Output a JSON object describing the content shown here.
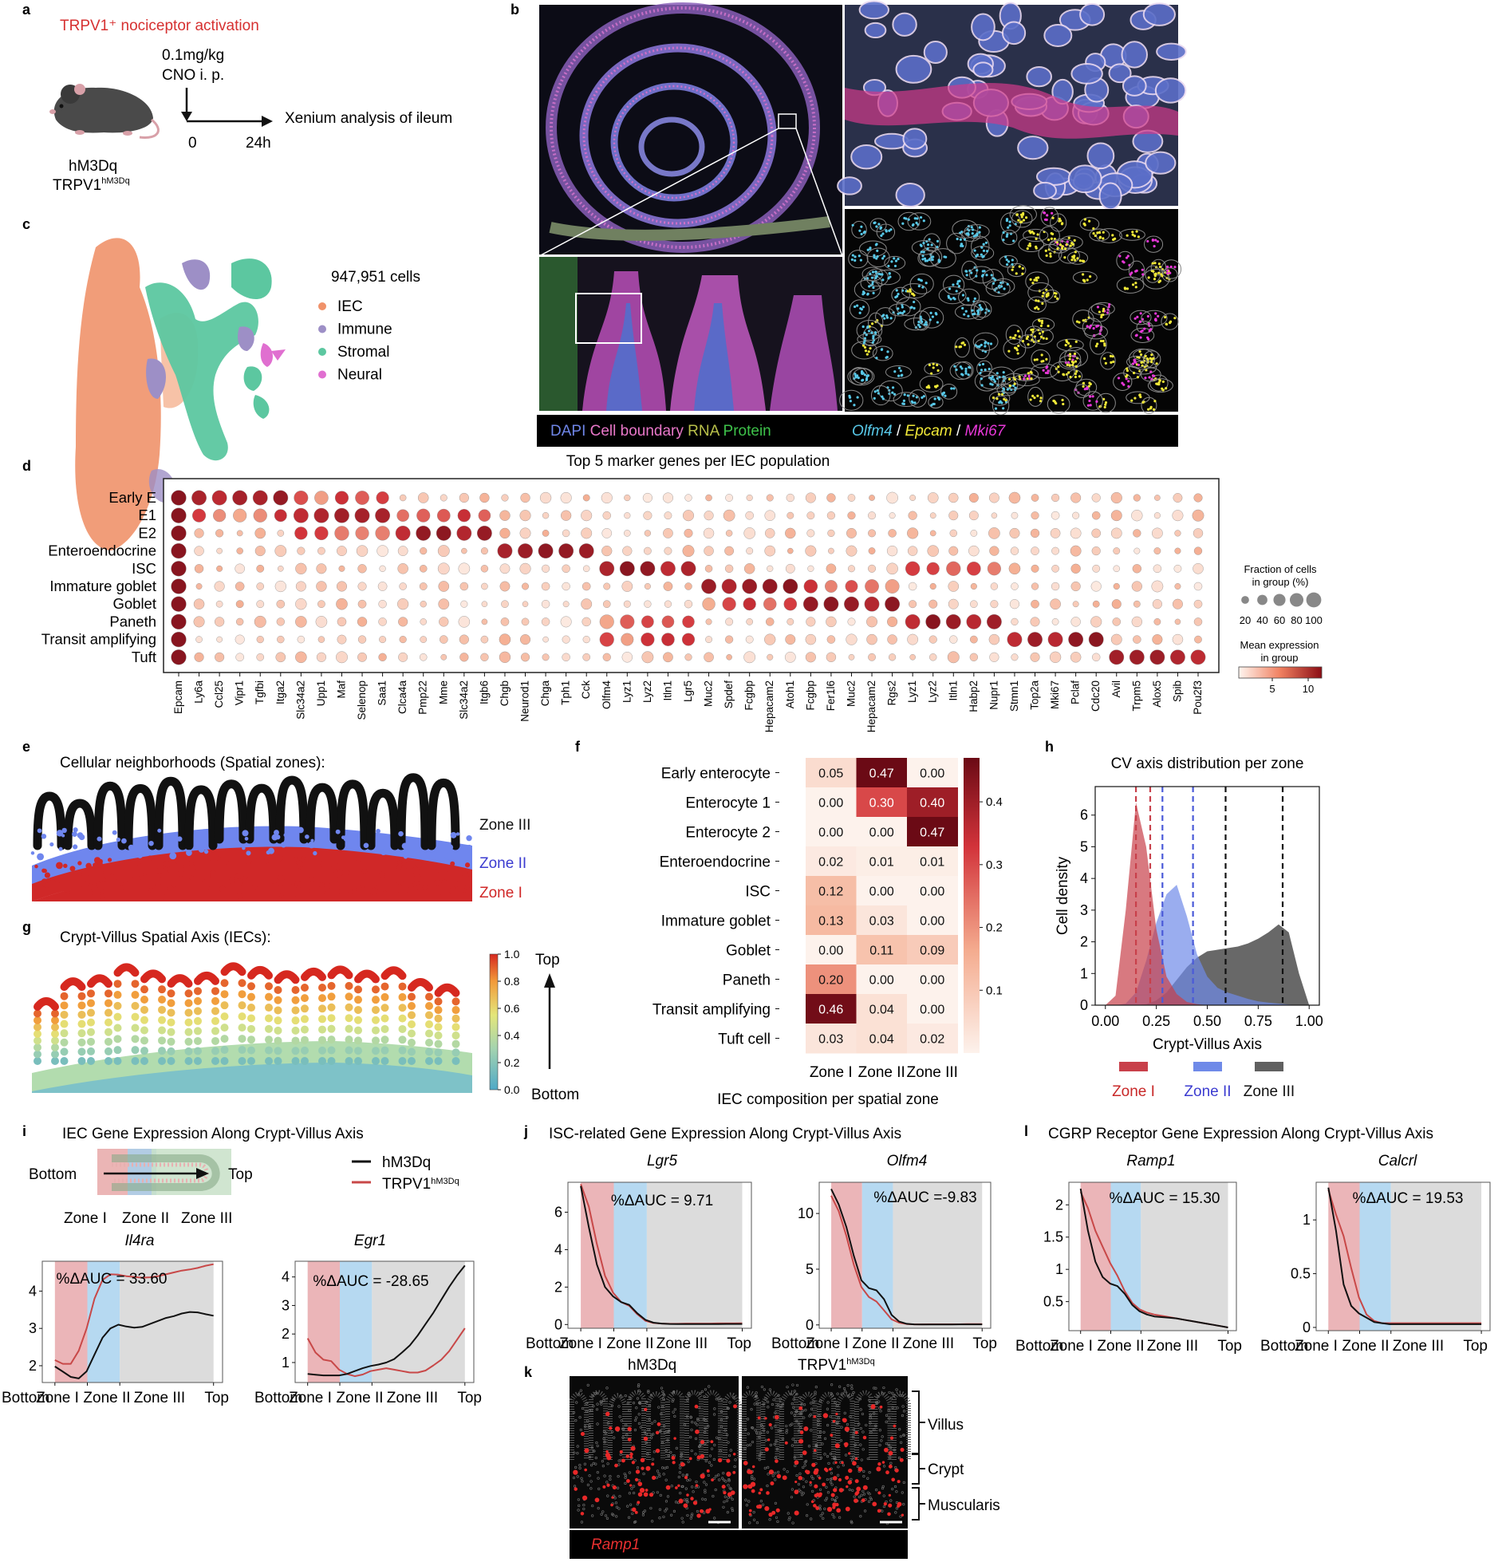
{
  "panel_a": {
    "letter": "a",
    "title": "TRPV1⁺ nociceptor activation",
    "dose_line1": "0.1mg/kg",
    "dose_line2": "CNO i. p.",
    "t0": "0",
    "t24": "24h",
    "analysis": "Xenium analysis of ileum",
    "mouse_line1": "hM3Dq",
    "mouse_line2_main": "TRPV1",
    "mouse_line2_sup": "hM3Dq"
  },
  "panel_b": {
    "letter": "b",
    "legend_left": [
      "DAPI",
      " Cell boundary",
      " RNA",
      " Protein"
    ],
    "legend_left_colors": [
      "#6f86e8",
      "#e877c8",
      "#b8c04a",
      "#3ec24a"
    ],
    "legend_right": [
      "Olfm4",
      " / ",
      "Epcam",
      " / ",
      "Mki67"
    ],
    "legend_right_colors": [
      "#58c8e8",
      "#ffffff",
      "#f0e838",
      "#ffffff",
      "#e838d8"
    ]
  },
  "panel_c": {
    "letter": "c",
    "count": "947,951 cells",
    "legend": [
      {
        "label": "IEC",
        "color": "#f0926a"
      },
      {
        "label": "Immune",
        "color": "#9d8fc6"
      },
      {
        "label": "Stromal",
        "color": "#5cc7a0"
      },
      {
        "label": "Neural",
        "color": "#e06fd0"
      }
    ]
  },
  "panel_d": {
    "letter": "d",
    "title": "Top 5 marker genes per IEC population",
    "size_legend_title_1": "Fraction of cells",
    "size_legend_title_2": "in group (%)",
    "size_ticks": [
      "20",
      "40",
      "60",
      "80",
      "100"
    ],
    "color_legend_title_1": "Mean expression",
    "color_legend_title_2": "in group",
    "color_ticks": [
      "5",
      "10"
    ]
  },
  "panel_e": {
    "letter": "e",
    "title": "Cellular neighborhoods (Spatial zones):",
    "zones": [
      {
        "label": "Zone III",
        "color": "#111111"
      },
      {
        "label": "Zone II",
        "color": "#3c3cd0"
      },
      {
        "label": "Zone I",
        "color": "#d02828"
      }
    ]
  },
  "panel_g": {
    "letter": "g",
    "title": "Crypt-Villus Spatial Axis (IECs):",
    "colorbar_ticks": [
      "1.0",
      "0.8",
      "0.6",
      "0.4",
      "0.2",
      "0.0"
    ],
    "top_label": "Top",
    "bottom_label": "Bottom"
  },
  "panel_f": {
    "letter": "f",
    "colorbar_ticks": [
      "0.4",
      "0.3",
      "0.2",
      "0.1"
    ]
  },
  "panel_h": {
    "letter": "h"
  },
  "panel_i": {
    "letter": "i",
    "title": "IEC Gene Expression Along Crypt-Villus Axis",
    "schematic_bottom": "Bottom",
    "schematic_top": "Top",
    "schematic_zones": [
      "Zone I",
      "Zone II",
      "Zone III"
    ],
    "legend": [
      {
        "label": "hM3Dq",
        "sup": "",
        "color": "#111111"
      },
      {
        "label": "TRPV1",
        "sup": "hM3Dq",
        "color": "#c84848"
      }
    ]
  },
  "panel_j": {
    "letter": "j",
    "title": "ISC-related Gene Expression Along Crypt-Villus Axis"
  },
  "panel_l": {
    "letter": "l",
    "title": "CGRP Receptor Gene Expression Along Crypt-Villus Axis"
  },
  "panel_k": {
    "letter": "k",
    "label_left": "hM3Dq",
    "label_right_main": "TRPV1",
    "label_right_sup": "hM3Dq",
    "regions": [
      "Villus",
      "Crypt",
      "Muscularis"
    ],
    "gene": "Ramp1"
  },
  "chart_data": [
    {
      "id": "d",
      "type": "dotplot",
      "title": "Top 5 marker genes per IEC population",
      "rows": [
        "Early E",
        "E1",
        "E2",
        "Enteroendocrine",
        "ISC",
        "Immature goblet",
        "Goblet",
        "Paneth",
        "Transit amplifying",
        "Tuft"
      ],
      "columns": [
        "Epcam",
        "Ly6a",
        "Ccl25",
        "Vipr1",
        "Tgfbi",
        "Itga2",
        "Slc34a2",
        "Upp1",
        "Maf",
        "Selenop",
        "Saa1",
        "Clca4a",
        "Pmp22",
        "Mme",
        "Slc34a2",
        "Itgb6",
        "Chgb",
        "Neurod1",
        "Chga",
        "Tph1",
        "Cck",
        "Olfm4",
        "Lyz1",
        "Lyz2",
        "Itln1",
        "Lgr5",
        "Muc2",
        "Spdef",
        "Fcgbp",
        "Hepacam2",
        "Atoh1",
        "Fcgbp",
        "Fer1l6",
        "Muc2",
        "Hepacam2",
        "Rgs2",
        "Lyz1",
        "Lyz2",
        "Itln1",
        "Habp2",
        "Nupr1",
        "Stmn1",
        "Top2a",
        "Mki67",
        "Pclaf",
        "Cdc20",
        "Avil",
        "Trpm5",
        "Alox5",
        "Spib",
        "Pou2f3"
      ],
      "highlights": [
        {
          "row": "Early E",
          "columns": [
            "Epcam",
            "Ly6a",
            "Ccl25",
            "Vipr1",
            "Tgfbi"
          ]
        },
        {
          "row": "E1",
          "columns": [
            "Slc34a2",
            "Upp1",
            "Maf",
            "Selenop",
            "Saa1"
          ]
        },
        {
          "row": "E2",
          "columns": [
            "Clca4a",
            "Pmp22",
            "Mme",
            "Slc34a2",
            "Itgb6"
          ]
        },
        {
          "row": "Enteroendocrine",
          "columns": [
            "Chgb",
            "Neurod1",
            "Chga",
            "Tph1",
            "Cck"
          ]
        },
        {
          "row": "ISC",
          "columns": [
            "Olfm4",
            "Lyz1",
            "Lyz2",
            "Itln1",
            "Lgr5"
          ]
        },
        {
          "row": "Immature goblet",
          "columns": [
            "Muc2",
            "Spdef",
            "Fcgbp",
            "Hepacam2",
            "Atoh1"
          ]
        },
        {
          "row": "Goblet",
          "columns": [
            "Fcgbp",
            "Fer1l6",
            "Muc2",
            "Hepacam2",
            "Rgs2"
          ]
        },
        {
          "row": "Paneth",
          "columns": [
            "Lyz1",
            "Lyz2",
            "Itln1",
            "Habp2",
            "Nupr1"
          ]
        },
        {
          "row": "Transit amplifying",
          "columns": [
            "Stmn1",
            "Top2a",
            "Mki67",
            "Pclaf",
            "Cdc20"
          ]
        },
        {
          "row": "Tuft",
          "columns": [
            "Avil",
            "Trpm5",
            "Alox5",
            "Spib",
            "Pou2f3"
          ]
        }
      ],
      "size_range_percent": [
        20,
        100
      ],
      "color_range": [
        0,
        12
      ]
    },
    {
      "id": "f",
      "type": "heatmap",
      "xlabel": "IEC composition per spatial zone",
      "columns": [
        "Zone I",
        "Zone II",
        "Zone III"
      ],
      "rows": [
        "Early enterocyte",
        "Enterocyte 1",
        "Enterocyte 2",
        "Enteroendocrine",
        "ISC",
        "Immature goblet",
        "Goblet",
        "Paneth",
        "Transit amplifying",
        "Tuft cell"
      ],
      "values": [
        [
          0.05,
          0.47,
          0.0
        ],
        [
          0.0,
          0.3,
          0.4
        ],
        [
          0.0,
          0.0,
          0.47
        ],
        [
          0.02,
          0.01,
          0.01
        ],
        [
          0.12,
          0.0,
          0.0
        ],
        [
          0.13,
          0.03,
          0.0
        ],
        [
          0.0,
          0.11,
          0.09
        ],
        [
          0.2,
          0.0,
          0.0
        ],
        [
          0.46,
          0.04,
          0.0
        ],
        [
          0.03,
          0.04,
          0.02
        ]
      ],
      "color_range": [
        0,
        0.47
      ]
    },
    {
      "id": "h",
      "type": "area",
      "title": "CV axis distribution per zone",
      "xlabel": "Crypt-Villus Axis",
      "ylabel": "Cell density",
      "xlim": [
        -0.05,
        1.05
      ],
      "ylim": [
        0,
        6.9
      ],
      "xticks": [
        "0.00",
        "0.25",
        "0.50",
        "0.75",
        "1.00"
      ],
      "yticks": [
        "0",
        "1",
        "2",
        "3",
        "4",
        "5",
        "6"
      ],
      "x": [
        0.0,
        0.05,
        0.1,
        0.15,
        0.2,
        0.25,
        0.3,
        0.35,
        0.4,
        0.45,
        0.5,
        0.55,
        0.6,
        0.65,
        0.7,
        0.75,
        0.8,
        0.85,
        0.9,
        0.95,
        1.0
      ],
      "series": [
        {
          "name": "Zone I",
          "color": "#c8404a",
          "values": [
            0,
            0.3,
            3.0,
            6.4,
            5.0,
            2.4,
            0.9,
            0.35,
            0.1,
            0.03,
            0,
            0,
            0,
            0,
            0,
            0,
            0,
            0,
            0,
            0,
            0
          ],
          "mean": 0.15,
          "median": 0.22
        },
        {
          "name": "Zone II",
          "color": "#6f8ae8",
          "values": [
            0,
            0,
            0.05,
            0.4,
            1.4,
            2.6,
            3.5,
            3.8,
            2.8,
            1.6,
            0.9,
            0.55,
            0.4,
            0.3,
            0.2,
            0.12,
            0.08,
            0.05,
            0.02,
            0,
            0
          ],
          "mean": 0.28,
          "median": 0.43
        },
        {
          "name": "Zone III",
          "color": "#606060",
          "values": [
            0,
            0,
            0,
            0,
            0.03,
            0.15,
            0.4,
            0.8,
            1.2,
            1.5,
            1.7,
            1.75,
            1.8,
            1.85,
            1.95,
            2.1,
            2.3,
            2.55,
            2.3,
            1.0,
            0
          ],
          "mean": 0.59,
          "median": 0.87
        }
      ],
      "legend": [
        "Zone I",
        "Zone II",
        "Zone III"
      ]
    },
    {
      "id": "i-Il4ra",
      "type": "line",
      "title": "Il4ra",
      "annotation": "%ΔAUC = 33.60",
      "x_labels": [
        "Bottom",
        "Zone I",
        "Zone II",
        "Zone III",
        "Top"
      ],
      "yticks": [
        2,
        3,
        4
      ],
      "ylim": [
        1.55,
        4.8
      ],
      "x": [
        0,
        0.05,
        0.1,
        0.15,
        0.2,
        0.25,
        0.3,
        0.35,
        0.4,
        0.45,
        0.5,
        0.55,
        0.6,
        0.65,
        0.7,
        0.75,
        0.8,
        0.85,
        0.9,
        0.95,
        1.0
      ],
      "series": [
        {
          "name": "hM3Dq",
          "values": [
            1.98,
            1.84,
            1.7,
            1.66,
            1.85,
            2.3,
            2.75,
            3.0,
            3.1,
            3.05,
            3.02,
            3.04,
            3.12,
            3.2,
            3.28,
            3.33,
            3.4,
            3.44,
            3.43,
            3.38,
            3.34
          ]
        },
        {
          "name": "TRPV1hM3Dq",
          "values": [
            2.15,
            2.05,
            2.05,
            2.4,
            3.0,
            3.8,
            4.3,
            4.45,
            4.44,
            4.4,
            4.38,
            4.36,
            4.37,
            4.4,
            4.45,
            4.5,
            4.55,
            4.58,
            4.62,
            4.68,
            4.72
          ]
        }
      ]
    },
    {
      "id": "i-Egr1",
      "type": "line",
      "title": "Egr1",
      "annotation": "%ΔAUC = -28.65",
      "x_labels": [
        "Bottom",
        "Zone I",
        "Zone II",
        "Zone III",
        "Top"
      ],
      "yticks": [
        1,
        2,
        3,
        4
      ],
      "ylim": [
        0.3,
        4.55
      ],
      "x": [
        0,
        0.05,
        0.1,
        0.15,
        0.2,
        0.25,
        0.3,
        0.35,
        0.4,
        0.45,
        0.5,
        0.55,
        0.6,
        0.65,
        0.7,
        0.75,
        0.8,
        0.85,
        0.9,
        0.95,
        1.0
      ],
      "series": [
        {
          "name": "hM3Dq",
          "values": [
            0.6,
            0.57,
            0.55,
            0.55,
            0.55,
            0.6,
            0.7,
            0.8,
            0.88,
            0.93,
            1.0,
            1.12,
            1.35,
            1.6,
            1.95,
            2.35,
            2.75,
            3.2,
            3.65,
            4.05,
            4.4
          ]
        },
        {
          "name": "TRPV1hM3Dq",
          "values": [
            1.85,
            1.35,
            1.1,
            1.05,
            0.75,
            0.6,
            0.52,
            0.58,
            0.7,
            0.75,
            0.8,
            0.75,
            0.7,
            0.65,
            0.65,
            0.72,
            0.9,
            1.1,
            1.4,
            1.8,
            2.2
          ]
        }
      ]
    },
    {
      "id": "j-Lgr5",
      "type": "line",
      "title": "Lgr5",
      "annotation": "%ΔAUC = 9.71",
      "x_labels": [
        "Bottom",
        "Zone I",
        "Zone II",
        "Zone III",
        "Top"
      ],
      "yticks": [
        0,
        2,
        4,
        6
      ],
      "ylim": [
        -0.2,
        7.6
      ],
      "x": [
        0,
        0.05,
        0.1,
        0.15,
        0.2,
        0.25,
        0.3,
        0.35,
        0.4,
        0.45,
        0.5,
        0.55,
        0.6,
        0.65,
        0.7,
        0.75,
        0.8,
        0.85,
        0.9,
        0.95,
        1.0
      ],
      "series": [
        {
          "name": "hM3Dq",
          "values": [
            7.4,
            5.2,
            3.2,
            2.0,
            1.5,
            1.2,
            1.05,
            0.6,
            0.25,
            0.1,
            0.05,
            0.03,
            0.02,
            0.02,
            0.02,
            0.02,
            0.02,
            0.02,
            0.03,
            0.03,
            0.03
          ]
        },
        {
          "name": "TRPV1hM3Dq",
          "values": [
            7.5,
            6.3,
            4.3,
            2.6,
            1.7,
            1.2,
            1.0,
            0.55,
            0.2,
            0.08,
            0.05,
            0.04,
            0.04,
            0.05,
            0.05,
            0.05,
            0.05,
            0.06,
            0.06,
            0.06,
            0.07
          ]
        }
      ]
    },
    {
      "id": "j-Olfm4",
      "type": "line",
      "title": "Olfm4",
      "annotation": "%ΔAUC =-9.83",
      "x_labels": [
        "Bottom",
        "Zone I",
        "Zone II",
        "Zone III",
        "Top"
      ],
      "yticks": [
        0,
        5,
        10
      ],
      "ylim": [
        -0.3,
        12.8
      ],
      "x": [
        0,
        0.05,
        0.1,
        0.15,
        0.2,
        0.25,
        0.3,
        0.35,
        0.4,
        0.45,
        0.5,
        0.55,
        0.6,
        0.65,
        0.7,
        0.75,
        0.8,
        0.85,
        0.9,
        0.95,
        1.0
      ],
      "series": [
        {
          "name": "hM3Dq",
          "values": [
            12.2,
            10.8,
            8.8,
            6.2,
            4.0,
            3.3,
            3.1,
            2.3,
            0.9,
            0.3,
            0.1,
            0.05,
            0.04,
            0.04,
            0.04,
            0.04,
            0.04,
            0.05,
            0.05,
            0.05,
            0.05
          ]
        },
        {
          "name": "TRPV1hM3Dq",
          "values": [
            11.6,
            10.2,
            8.0,
            5.4,
            3.4,
            2.5,
            2.1,
            1.3,
            0.5,
            0.2,
            0.08,
            0.05,
            0.05,
            0.06,
            0.06,
            0.06,
            0.06,
            0.06,
            0.07,
            0.07,
            0.07
          ]
        }
      ]
    },
    {
      "id": "l-Ramp1",
      "type": "line",
      "title": "Ramp1",
      "annotation": "%ΔAUC = 15.30",
      "x_labels": [
        "Bottom",
        "Zone I",
        "Zone II",
        "Zone III",
        "Top"
      ],
      "yticks": [
        0.5,
        1,
        1.5,
        2
      ],
      "ylim": [
        0.05,
        2.35
      ],
      "x": [
        0,
        0.05,
        0.1,
        0.15,
        0.2,
        0.25,
        0.3,
        0.35,
        0.4,
        0.45,
        0.5,
        0.55,
        0.6,
        0.65,
        0.7,
        0.75,
        0.8,
        0.85,
        0.9,
        0.95,
        1.0
      ],
      "series": [
        {
          "name": "hM3Dq",
          "values": [
            2.25,
            1.6,
            1.12,
            0.88,
            0.78,
            0.74,
            0.62,
            0.45,
            0.35,
            0.3,
            0.27,
            0.26,
            0.25,
            0.24,
            0.22,
            0.2,
            0.18,
            0.16,
            0.14,
            0.12,
            0.1
          ]
        },
        {
          "name": "TRPV1hM3Dq",
          "values": [
            2.2,
            1.95,
            1.6,
            1.35,
            1.1,
            0.9,
            0.66,
            0.48,
            0.38,
            0.33,
            0.3,
            0.28,
            0.26,
            0.24,
            0.22,
            0.2,
            0.18,
            0.16,
            0.14,
            0.12,
            0.1
          ]
        }
      ]
    },
    {
      "id": "l-Calcrl",
      "type": "line",
      "title": "Calcrl",
      "annotation": "%ΔAUC = 19.53",
      "x_labels": [
        "Bottom",
        "Zone I",
        "Zone II",
        "Zone III",
        "Top"
      ],
      "yticks": [
        0,
        0.5,
        1
      ],
      "ylim": [
        -0.03,
        1.35
      ],
      "x": [
        0,
        0.05,
        0.1,
        0.15,
        0.2,
        0.25,
        0.3,
        0.35,
        0.4,
        0.45,
        0.5,
        0.55,
        0.6,
        0.65,
        0.7,
        0.75,
        0.8,
        0.85,
        0.9,
        0.95,
        1.0
      ],
      "series": [
        {
          "name": "hM3Dq",
          "values": [
            1.3,
            0.9,
            0.4,
            0.2,
            0.13,
            0.09,
            0.05,
            0.04,
            0.03,
            0.03,
            0.03,
            0.03,
            0.03,
            0.03,
            0.03,
            0.03,
            0.03,
            0.03,
            0.03,
            0.03,
            0.03
          ]
        },
        {
          "name": "TRPV1hM3Dq",
          "values": [
            1.28,
            1.05,
            0.85,
            0.55,
            0.28,
            0.12,
            0.06,
            0.04,
            0.04,
            0.04,
            0.04,
            0.04,
            0.04,
            0.04,
            0.04,
            0.04,
            0.04,
            0.04,
            0.04,
            0.04,
            0.04
          ]
        }
      ]
    }
  ]
}
